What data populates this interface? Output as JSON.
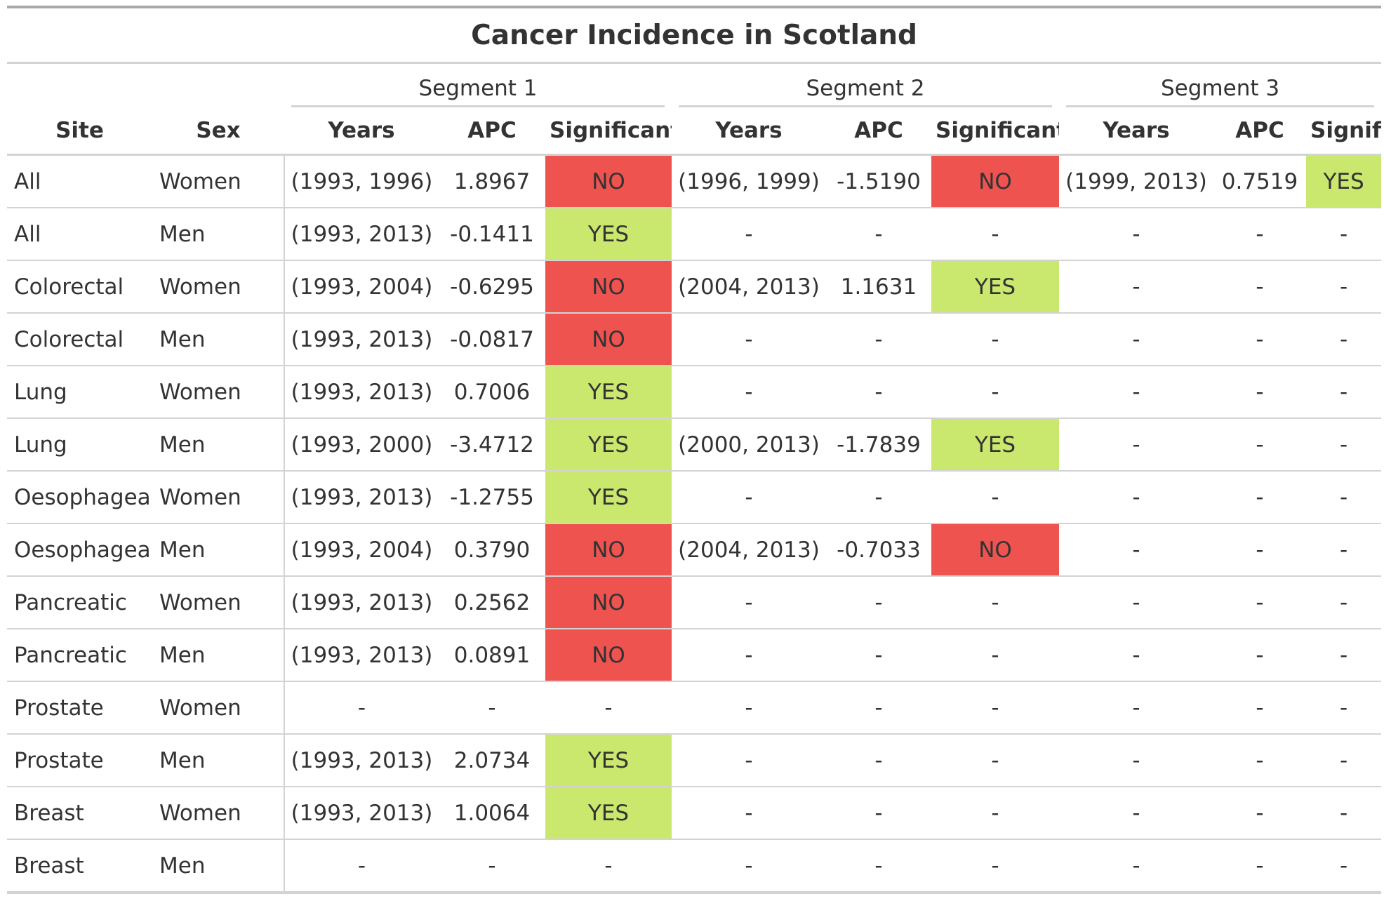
{
  "title": "Cancer Incidence in Scotland",
  "colors": {
    "yes": "#c9e86d",
    "no": "#ef5350",
    "rule": "#d3d3d3"
  },
  "spanners": [
    "Segment 1",
    "Segment 2",
    "Segment 3"
  ],
  "columns": [
    "Site",
    "Sex",
    "Years",
    "APC",
    "Significant",
    "Years",
    "APC",
    "Significant",
    "Years",
    "APC",
    "Significant"
  ],
  "rows": [
    {
      "site": "All",
      "sex": "Women",
      "segments": [
        {
          "years": "(1993, 1996)",
          "apc": "1.8967",
          "significant": "NO"
        },
        {
          "years": "(1996, 1999)",
          "apc": "-1.5190",
          "significant": "NO"
        },
        {
          "years": "(1999, 2013)",
          "apc": "0.7519",
          "significant": "YES"
        }
      ]
    },
    {
      "site": "All",
      "sex": "Men",
      "segments": [
        {
          "years": "(1993, 2013)",
          "apc": "-0.1411",
          "significant": "YES"
        },
        {
          "years": "-",
          "apc": "-",
          "significant": "-"
        },
        {
          "years": "-",
          "apc": "-",
          "significant": "-"
        }
      ]
    },
    {
      "site": "Colorectal",
      "sex": "Women",
      "segments": [
        {
          "years": "(1993, 2004)",
          "apc": "-0.6295",
          "significant": "NO"
        },
        {
          "years": "(2004, 2013)",
          "apc": "1.1631",
          "significant": "YES"
        },
        {
          "years": "-",
          "apc": "-",
          "significant": "-"
        }
      ]
    },
    {
      "site": "Colorectal",
      "sex": "Men",
      "segments": [
        {
          "years": "(1993, 2013)",
          "apc": "-0.0817",
          "significant": "NO"
        },
        {
          "years": "-",
          "apc": "-",
          "significant": "-"
        },
        {
          "years": "-",
          "apc": "-",
          "significant": "-"
        }
      ]
    },
    {
      "site": "Lung",
      "sex": "Women",
      "segments": [
        {
          "years": "(1993, 2013)",
          "apc": "0.7006",
          "significant": "YES"
        },
        {
          "years": "-",
          "apc": "-",
          "significant": "-"
        },
        {
          "years": "-",
          "apc": "-",
          "significant": "-"
        }
      ]
    },
    {
      "site": "Lung",
      "sex": "Men",
      "segments": [
        {
          "years": "(1993, 2000)",
          "apc": "-3.4712",
          "significant": "YES"
        },
        {
          "years": "(2000, 2013)",
          "apc": "-1.7839",
          "significant": "YES"
        },
        {
          "years": "-",
          "apc": "-",
          "significant": "-"
        }
      ]
    },
    {
      "site": "Oesophageal",
      "sex": "Women",
      "segments": [
        {
          "years": "(1993, 2013)",
          "apc": "-1.2755",
          "significant": "YES"
        },
        {
          "years": "-",
          "apc": "-",
          "significant": "-"
        },
        {
          "years": "-",
          "apc": "-",
          "significant": "-"
        }
      ]
    },
    {
      "site": "Oesophageal",
      "sex": "Men",
      "segments": [
        {
          "years": "(1993, 2004)",
          "apc": "0.3790",
          "significant": "NO"
        },
        {
          "years": "(2004, 2013)",
          "apc": "-0.7033",
          "significant": "NO"
        },
        {
          "years": "-",
          "apc": "-",
          "significant": "-"
        }
      ]
    },
    {
      "site": "Pancreatic",
      "sex": "Women",
      "segments": [
        {
          "years": "(1993, 2013)",
          "apc": "0.2562",
          "significant": "NO"
        },
        {
          "years": "-",
          "apc": "-",
          "significant": "-"
        },
        {
          "years": "-",
          "apc": "-",
          "significant": "-"
        }
      ]
    },
    {
      "site": "Pancreatic",
      "sex": "Men",
      "segments": [
        {
          "years": "(1993, 2013)",
          "apc": "0.0891",
          "significant": "NO"
        },
        {
          "years": "-",
          "apc": "-",
          "significant": "-"
        },
        {
          "years": "-",
          "apc": "-",
          "significant": "-"
        }
      ]
    },
    {
      "site": "Prostate",
      "sex": "Women",
      "segments": [
        {
          "years": "-",
          "apc": "-",
          "significant": "-"
        },
        {
          "years": "-",
          "apc": "-",
          "significant": "-"
        },
        {
          "years": "-",
          "apc": "-",
          "significant": "-"
        }
      ]
    },
    {
      "site": "Prostate",
      "sex": "Men",
      "segments": [
        {
          "years": "(1993, 2013)",
          "apc": "2.0734",
          "significant": "YES"
        },
        {
          "years": "-",
          "apc": "-",
          "significant": "-"
        },
        {
          "years": "-",
          "apc": "-",
          "significant": "-"
        }
      ]
    },
    {
      "site": "Breast",
      "sex": "Women",
      "segments": [
        {
          "years": "(1993, 2013)",
          "apc": "1.0064",
          "significant": "YES"
        },
        {
          "years": "-",
          "apc": "-",
          "significant": "-"
        },
        {
          "years": "-",
          "apc": "-",
          "significant": "-"
        }
      ]
    },
    {
      "site": "Breast",
      "sex": "Men",
      "segments": [
        {
          "years": "-",
          "apc": "-",
          "significant": "-"
        },
        {
          "years": "-",
          "apc": "-",
          "significant": "-"
        },
        {
          "years": "-",
          "apc": "-",
          "significant": "-"
        }
      ]
    }
  ]
}
